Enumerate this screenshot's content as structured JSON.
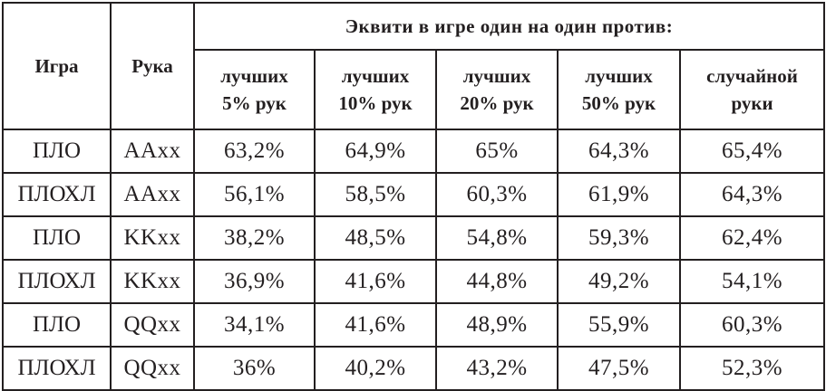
{
  "table": {
    "header_game": "Игра",
    "header_hand": "Рука",
    "header_group": "Эквити в игре один на один против:",
    "columns": [
      [
        "лучших",
        "5% рук"
      ],
      [
        "лучших",
        "10% рук"
      ],
      [
        "лучших",
        "20% рук"
      ],
      [
        "лучших",
        "50% рук"
      ],
      [
        "случайной",
        "руки"
      ]
    ],
    "rows": [
      {
        "game": "ПЛО",
        "hand": "AAxx",
        "values": [
          "63,2%",
          "64,9%",
          "65%",
          "64,3%",
          "65,4%"
        ]
      },
      {
        "game": "ПЛОХЛ",
        "hand": "AAxx",
        "values": [
          "56,1%",
          "58,5%",
          "60,3%",
          "61,9%",
          "64,3%"
        ]
      },
      {
        "game": "ПЛО",
        "hand": "KKxx",
        "values": [
          "38,2%",
          "48,5%",
          "54,8%",
          "59,3%",
          "62,4%"
        ]
      },
      {
        "game": "ПЛОХЛ",
        "hand": "KKxx",
        "values": [
          "36,9%",
          "41,6%",
          "44,8%",
          "49,2%",
          "54,1%"
        ]
      },
      {
        "game": "ПЛО",
        "hand": "QQxx",
        "values": [
          "34,1%",
          "41,6%",
          "48,9%",
          "55,9%",
          "60,3%"
        ]
      },
      {
        "game": "ПЛОХЛ",
        "hand": "QQxx",
        "values": [
          "36%",
          "40,2%",
          "43,2%",
          "47,5%",
          "52,3%"
        ]
      }
    ]
  }
}
